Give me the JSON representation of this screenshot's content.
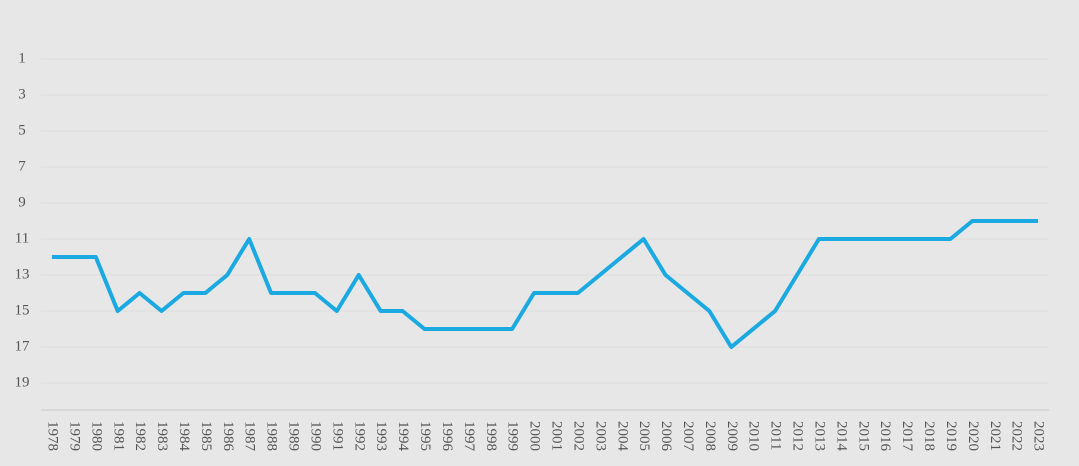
{
  "chart_data": {
    "type": "line",
    "categories": [
      "1978",
      "1979",
      "1980",
      "1981",
      "1982",
      "1983",
      "1984",
      "1985",
      "1986",
      "1987",
      "1988",
      "1989",
      "1990",
      "1991",
      "1992",
      "1993",
      "1994",
      "1995",
      "1996",
      "1997",
      "1998",
      "1999",
      "2000",
      "2001",
      "2002",
      "2003",
      "2004",
      "2005",
      "2006",
      "2007",
      "2008",
      "2009",
      "2010",
      "2011",
      "2012",
      "2013",
      "2014",
      "2015",
      "2016",
      "2017",
      "2018",
      "2019",
      "2020",
      "2021",
      "2022",
      "2023"
    ],
    "series": [
      {
        "color": "#1aa9e0",
        "values": [
          12,
          12,
          12,
          15,
          14,
          15,
          14,
          14,
          13,
          11,
          14,
          14,
          14,
          15,
          13,
          15,
          15,
          16,
          16,
          16,
          16,
          16,
          14,
          14,
          14,
          13,
          12,
          11,
          13,
          14,
          15,
          17,
          16,
          15,
          13,
          11,
          11,
          11,
          11,
          11,
          11,
          11,
          10,
          10,
          10,
          10
        ]
      }
    ],
    "ylim": [
      20.5,
      -1
    ],
    "yticks": [
      1,
      3,
      5,
      7,
      9,
      11,
      13,
      15,
      17,
      19
    ],
    "grid": true
  }
}
